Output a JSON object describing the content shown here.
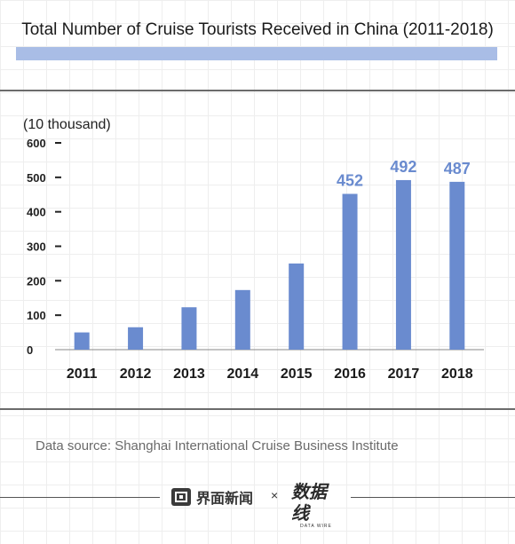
{
  "title": "Total Number of Cruise Tourists Received in China (2011-2018)",
  "colors": {
    "bar": "#6a8bcf",
    "title_band": "#a9bde6",
    "label": "#6a8bcf"
  },
  "chart_data": {
    "type": "bar",
    "title": "Total Number of Cruise Tourists Received in China (2011-2018)",
    "unit_label": "(10 thousand)",
    "xlabel": "",
    "ylabel": "",
    "categories": [
      "2011",
      "2012",
      "2013",
      "2014",
      "2015",
      "2016",
      "2017",
      "2018"
    ],
    "values": [
      50,
      65,
      123,
      173,
      250,
      452,
      492,
      487
    ],
    "data_labels": [
      "",
      "",
      "",
      "",
      "",
      "452",
      "492",
      "487"
    ],
    "y_ticks": [
      "0",
      "100",
      "200",
      "300",
      "400",
      "500",
      "600"
    ],
    "ylim": [
      0,
      600
    ],
    "grid": false,
    "legend": "none"
  },
  "source": "Data source: Shanghai International Cruise Business Institute",
  "footer": {
    "brand1": "界面新闻",
    "times": "×",
    "brand2": "数据线",
    "brand2_sub": "DATA WIRE"
  }
}
